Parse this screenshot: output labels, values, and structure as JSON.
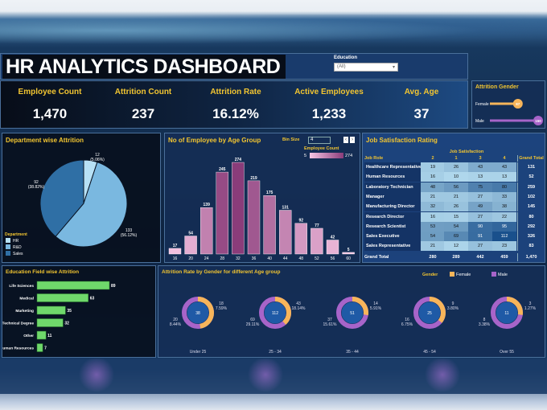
{
  "title": "HR ANALYTICS DASHBOARD",
  "filter": {
    "label": "Education",
    "value": "(All)"
  },
  "kpis": [
    {
      "label": "Employee Count",
      "value": "1,470"
    },
    {
      "label": "Attrition Count",
      "value": "237"
    },
    {
      "label": "Attrition Rate",
      "value": "16.12%"
    },
    {
      "label": "Active Employees",
      "value": "1,233"
    },
    {
      "label": "Avg. Age",
      "value": "37"
    }
  ],
  "gender": {
    "title": "Attrition Gender",
    "items": [
      {
        "label": "Female",
        "value": 87,
        "color": "#f7b55a"
      },
      {
        "label": "Male",
        "value": 150,
        "color": "#a764c9"
      }
    ]
  },
  "chart_data": [
    {
      "type": "pie",
      "title": "Department wise Attrition",
      "legend_title": "Department",
      "legend_position": "bottom-left",
      "slices": [
        {
          "name": "HR",
          "value": 12,
          "pct": "5.06%",
          "color": "#b7e1f5"
        },
        {
          "name": "R&D",
          "value": 133,
          "pct": "56.12%",
          "color": "#7ab8e0"
        },
        {
          "name": "Sales",
          "value": 92,
          "pct": "38.82%",
          "color": "#2f6fa5"
        }
      ]
    },
    {
      "type": "bar",
      "title": "No of Employee by Age Group",
      "bin_size_label": "Bin Size",
      "bin_size": "4",
      "legend_title": "Employee Count",
      "legend_range": [
        "5",
        "274"
      ],
      "categories": [
        "16",
        "20",
        "24",
        "28",
        "32",
        "36",
        "40",
        "44",
        "48",
        "52",
        "56",
        "60"
      ],
      "values": [
        17,
        54,
        139,
        245,
        274,
        219,
        175,
        131,
        92,
        77,
        42,
        5
      ]
    },
    {
      "type": "bar",
      "orientation": "horizontal",
      "title": "Education Field wise Attrition",
      "categories": [
        "Life Sciences",
        "Medical",
        "Marketing",
        "Technical Degree",
        "Other",
        "Human Resources"
      ],
      "values": [
        89,
        63,
        35,
        32,
        11,
        7
      ],
      "color": "#6fd86b"
    },
    {
      "type": "pie",
      "subtype": "donut",
      "title": "Attrition Rate by Gender for different Age group",
      "legend_title": "Gender",
      "legend": [
        {
          "name": "Female",
          "color": "#f7b55a"
        },
        {
          "name": "Male",
          "color": "#a764c9"
        }
      ],
      "groups": [
        {
          "label": "Under 25",
          "total": 38,
          "female": 18,
          "female_pct": "7.59%",
          "male": 20,
          "male_pct": "8.44%"
        },
        {
          "label": "25 - 34",
          "total": 112,
          "female": 43,
          "female_pct": "18.14%",
          "male": 69,
          "male_pct": "29.11%"
        },
        {
          "label": "35 - 44",
          "total": 51,
          "female": 14,
          "female_pct": "5.91%",
          "male": 37,
          "male_pct": "15.61%"
        },
        {
          "label": "45 - 54",
          "total": 25,
          "female": 9,
          "female_pct": "3.80%",
          "male": 16,
          "male_pct": "6.75%"
        },
        {
          "label": "Over 55",
          "total": 11,
          "female": 3,
          "female_pct": "1.27%",
          "male": 8,
          "male_pct": "3.38%"
        }
      ]
    }
  ],
  "table": {
    "title": "Job Satisfaction Rating",
    "group_header": "Job Satisfaction",
    "row_header": "Job Role",
    "columns": [
      "2",
      "1",
      "3",
      "4"
    ],
    "total_header": "Grand Total",
    "rows": [
      {
        "role": "Healthcare Representative",
        "values": [
          19,
          26,
          43,
          43
        ],
        "total": "131"
      },
      {
        "role": "Human Resources",
        "values": [
          16,
          10,
          13,
          13
        ],
        "total": "52"
      },
      {
        "role": "Laboratory Technician",
        "values": [
          48,
          56,
          75,
          80
        ],
        "total": "259"
      },
      {
        "role": "Manager",
        "values": [
          21,
          21,
          27,
          33
        ],
        "total": "102"
      },
      {
        "role": "Manufacturing Director",
        "values": [
          32,
          26,
          49,
          38
        ],
        "total": "145"
      },
      {
        "role": "Research Director",
        "values": [
          16,
          15,
          27,
          22
        ],
        "total": "80"
      },
      {
        "role": "Research Scientist",
        "values": [
          53,
          54,
          90,
          95
        ],
        "total": "292"
      },
      {
        "role": "Sales Executive",
        "values": [
          54,
          69,
          91,
          112
        ],
        "total": "326"
      },
      {
        "role": "Sales Representative",
        "values": [
          21,
          12,
          27,
          23
        ],
        "total": "83"
      }
    ],
    "grand_total_label": "Grand Total",
    "grand_totals": [
      "280",
      "289",
      "442",
      "459"
    ],
    "grand_total": "1,470"
  }
}
